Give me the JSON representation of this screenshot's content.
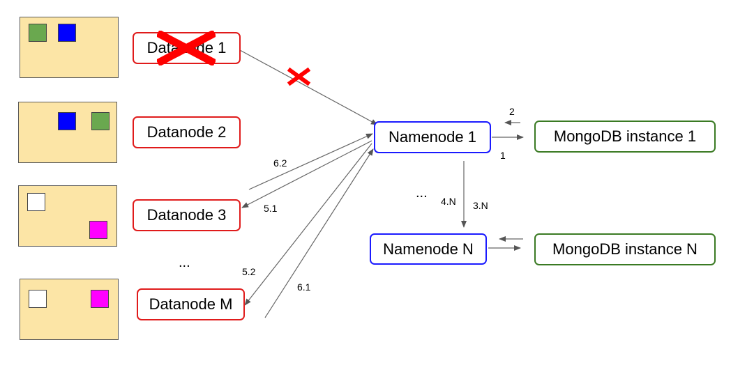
{
  "datanodes": [
    {
      "label": "Datanode 1",
      "failed": true
    },
    {
      "label": "Datanode 2"
    },
    {
      "label": "Datanode 3"
    },
    {
      "label": "Datanode M"
    }
  ],
  "namenodes": [
    {
      "label": "Namenode 1"
    },
    {
      "label": "Namenode N"
    }
  ],
  "mongo": [
    {
      "label": "MongoDB instance 1"
    },
    {
      "label": "MongoDB instance N"
    }
  ],
  "edge_labels": {
    "e1": "1",
    "e2": "2",
    "e3N": "3.N",
    "e4N": "4.N",
    "e51": "5.1",
    "e52": "5.2",
    "e61": "6.1",
    "e62": "6.2"
  },
  "ellipsis": "...",
  "colors": {
    "datanode_border": "#e01b1b",
    "namenode_border": "#1a1aff",
    "mongo_border": "#3a7a23",
    "storage_fill": "#fce5a6",
    "block_green": "#6aa84f",
    "block_blue": "#0000ff",
    "block_white": "#ffffff",
    "block_magenta": "#ff00ff",
    "fail_mark": "#ff0000"
  }
}
